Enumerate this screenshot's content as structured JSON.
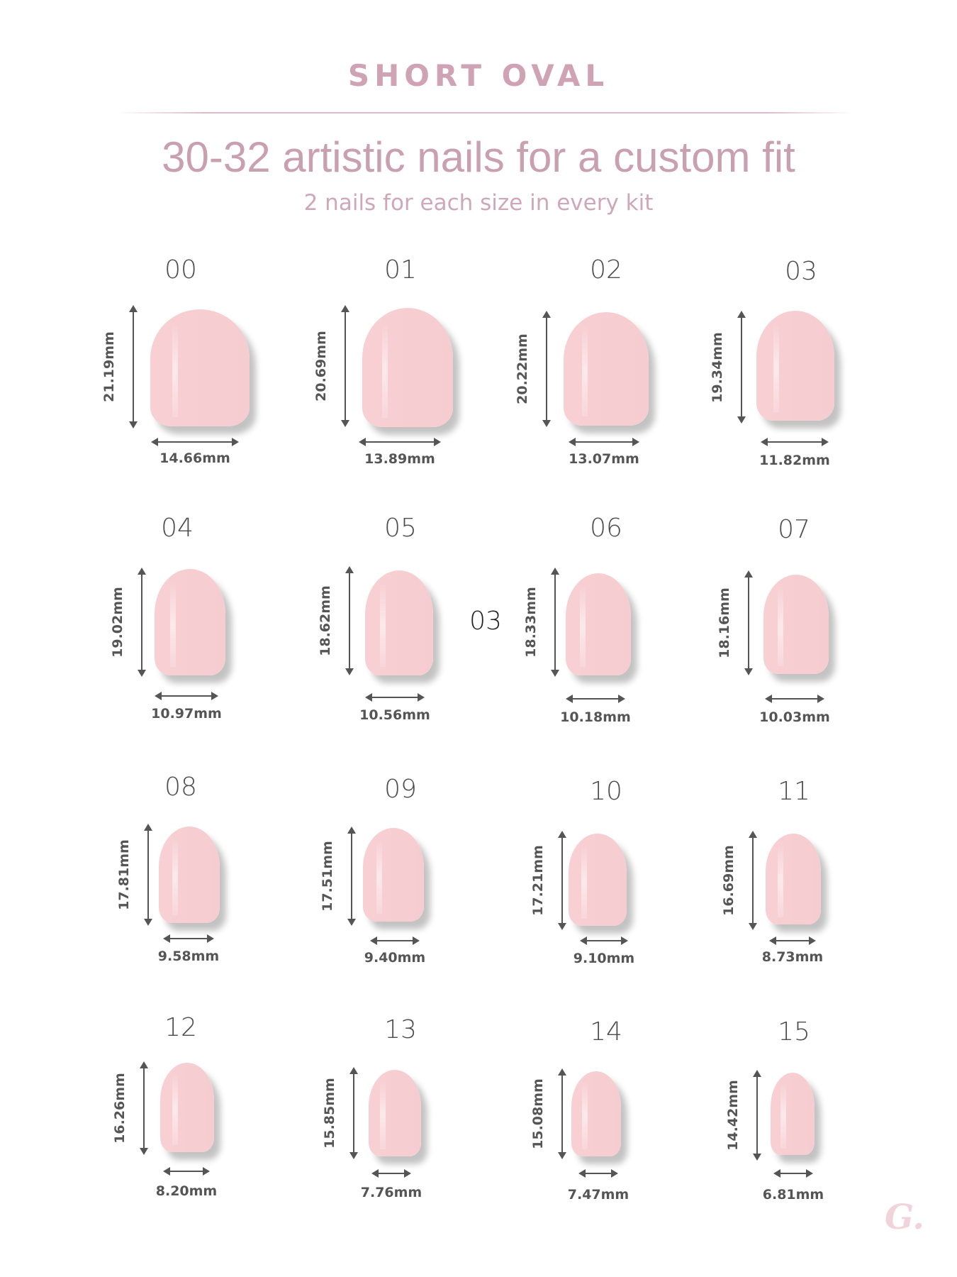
{
  "header": {
    "title": "SHORT OVAL",
    "headline": "30-32 artistic nails for a custom fit",
    "subheadline": "2 nails for each size in every kit"
  },
  "sizes": [
    {
      "label": "00",
      "height": "21.19mm",
      "width": "14.66mm"
    },
    {
      "label": "01",
      "height": "20.69mm",
      "width": "13.89mm"
    },
    {
      "label": "02",
      "height": "20.22mm",
      "width": "13.07mm"
    },
    {
      "label": "03",
      "height": "19.34mm",
      "width": "11.82mm"
    },
    {
      "label": "04",
      "height": "19.02mm",
      "width": "10.97mm"
    },
    {
      "label": "05",
      "height": "18.62mm",
      "width": "10.56mm"
    },
    {
      "label": "06",
      "height": "18.33mm",
      "width": "10.18mm"
    },
    {
      "label": "07",
      "height": "18.16mm",
      "width": "10.03mm"
    },
    {
      "label": "08",
      "height": "17.81mm",
      "width": "9.58mm"
    },
    {
      "label": "09",
      "height": "17.51mm",
      "width": "9.40mm"
    },
    {
      "label": "10",
      "height": "17.21mm",
      "width": "9.10mm"
    },
    {
      "label": "11",
      "height": "16.69mm",
      "width": "8.73mm"
    },
    {
      "label": "12",
      "height": "16.26mm",
      "width": "8.20mm"
    },
    {
      "label": "13",
      "height": "15.85mm",
      "width": "7.76mm"
    },
    {
      "label": "14",
      "height": "15.08mm",
      "width": "7.47mm"
    },
    {
      "label": "15",
      "height": "14.42mm",
      "width": "6.81mm"
    }
  ],
  "stray_label": "03",
  "logo": {
    "text": "G."
  },
  "colors": {
    "accent": "#cfa3b3",
    "nail": "#f7cfd3",
    "dimension": "#555555"
  }
}
